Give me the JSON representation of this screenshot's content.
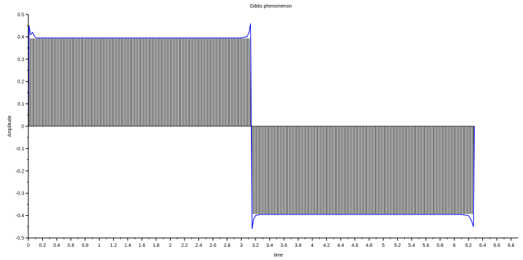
{
  "chart_data": {
    "type": "line",
    "title": "Gibbs phenomenon",
    "xlabel": "time",
    "ylabel": "Amplitude",
    "xlim": [
      0,
      6.9
    ],
    "ylim": [
      -0.5,
      0.5
    ],
    "grid": false,
    "xticks": [
      "0",
      "0.2",
      "0.4",
      "0.6",
      "0.8",
      "1",
      "1.2",
      "1.4",
      "1.6",
      "1.8",
      "2",
      "2.2",
      "2.4",
      "2.6",
      "2.8",
      "3",
      "3.2",
      "3.4",
      "3.6",
      "3.8",
      "4",
      "4.2",
      "4.4",
      "4.6",
      "4.8",
      "5",
      "5.2",
      "5.4",
      "5.6",
      "5.8",
      "6",
      "6.2",
      "6.4",
      "6.6",
      "6.8"
    ],
    "yticks": [
      "-0.5",
      "-0.4",
      "-0.3",
      "-0.2",
      "-0.1",
      "0",
      "0.1",
      "0.2",
      "0.3",
      "0.4",
      "0.5"
    ],
    "series": [
      {
        "kind": "stems",
        "color": "#000000",
        "x_start": 0.0,
        "x_end": 6.283,
        "count": 300,
        "segments": [
          {
            "x_from": 0.0,
            "x_to": 3.1416,
            "value": 0.393
          },
          {
            "x_from": 3.1416,
            "x_to": 6.283,
            "value": -0.393
          }
        ]
      },
      {
        "kind": "line",
        "color": "#0000ff",
        "description_points": [
          [
            0.0,
            0.0
          ],
          [
            0.01,
            0.45
          ],
          [
            0.03,
            0.41
          ],
          [
            0.06,
            0.42
          ],
          [
            0.09,
            0.4
          ],
          [
            0.12,
            0.395
          ],
          [
            0.2,
            0.395
          ],
          [
            1.5,
            0.395
          ],
          [
            3.0,
            0.395
          ],
          [
            3.08,
            0.4
          ],
          [
            3.11,
            0.42
          ],
          [
            3.13,
            0.46
          ],
          [
            3.1416,
            0.0
          ],
          [
            3.153,
            -0.46
          ],
          [
            3.17,
            -0.42
          ],
          [
            3.2,
            -0.4
          ],
          [
            3.26,
            -0.395
          ],
          [
            4.5,
            -0.395
          ],
          [
            6.1,
            -0.395
          ],
          [
            6.2,
            -0.4
          ],
          [
            6.24,
            -0.42
          ],
          [
            6.27,
            -0.45
          ],
          [
            6.283,
            0.0
          ]
        ]
      }
    ]
  }
}
